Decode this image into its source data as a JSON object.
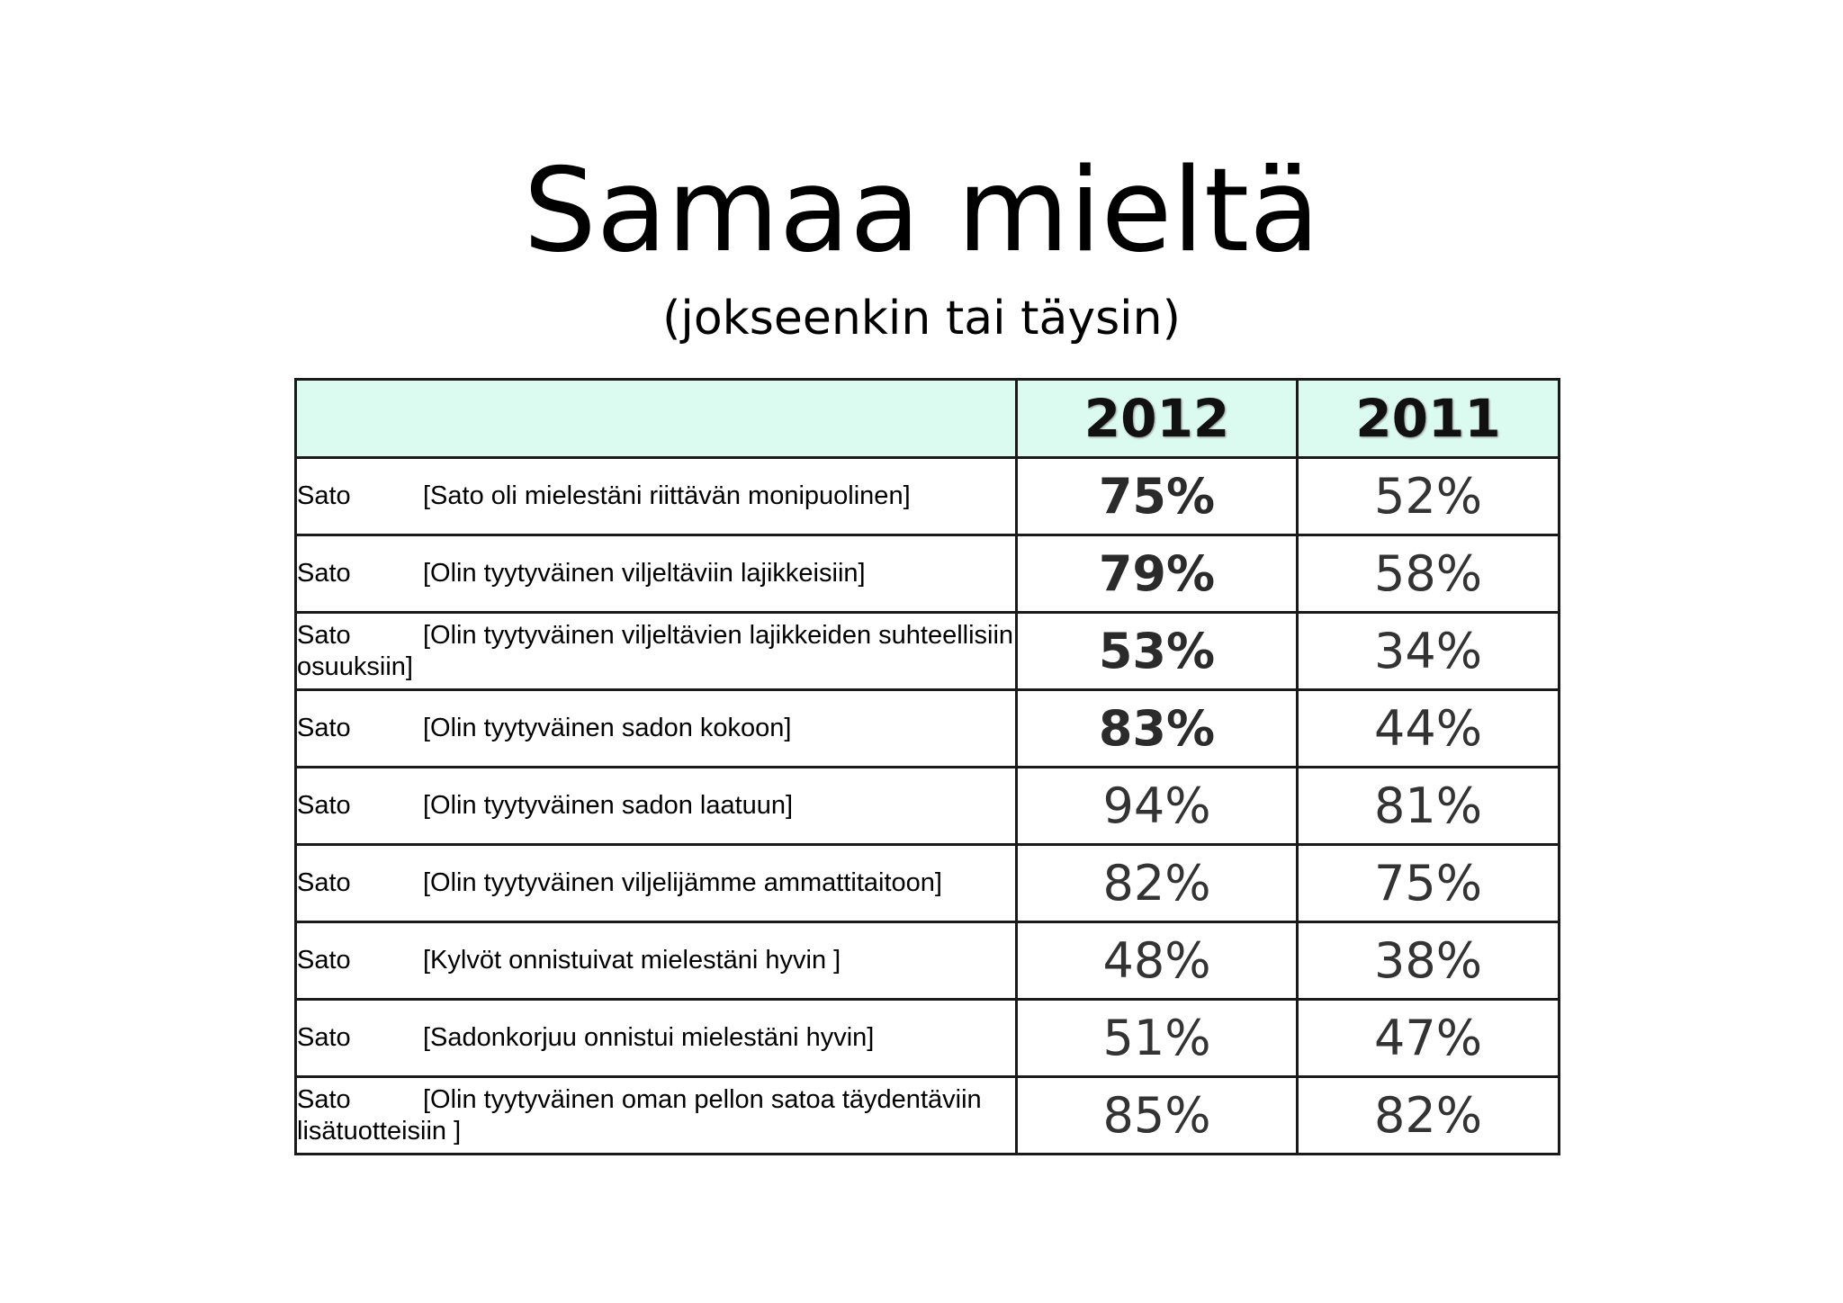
{
  "slide": {
    "title": "Samaa mieltä",
    "subtitle": "(jokseenkin tai täysin)"
  },
  "table": {
    "headers": [
      "",
      "2012",
      "2011"
    ],
    "rows": [
      {
        "prefix": "Sato",
        "text": "[Sato oli mielestäni riittävän monipuolinen]",
        "v2012": "75%",
        "v2011": "52%",
        "bold2012": true
      },
      {
        "prefix": "Sato",
        "text": "[Olin tyytyväinen viljeltäviin lajikkeisiin]",
        "v2012": "79%",
        "v2011": "58%",
        "bold2012": true
      },
      {
        "prefix": "Sato",
        "text": "[Olin tyytyväinen viljeltävien lajikkeiden suhteellisiin osuuksiin]",
        "v2012": "53%",
        "v2011": "34%",
        "bold2012": true
      },
      {
        "prefix": "Sato",
        "text": "[Olin tyytyväinen sadon kokoon]",
        "v2012": "83%",
        "v2011": "44%",
        "bold2012": true
      },
      {
        "prefix": "Sato",
        "text": "[Olin tyytyväinen sadon laatuun]",
        "v2012": "94%",
        "v2011": "81%",
        "bold2012": false
      },
      {
        "prefix": "Sato",
        "text": "[Olin tyytyväinen viljelijämme ammattitaitoon]",
        "v2012": "82%",
        "v2011": "75%",
        "bold2012": false
      },
      {
        "prefix": "Sato",
        "text": "[Kylvöt onnistuivat mielestäni hyvin ]",
        "v2012": "48%",
        "v2011": "38%",
        "bold2012": false
      },
      {
        "prefix": "Sato",
        "text": "[Sadonkorjuu onnistui mielestäni hyvin]",
        "v2012": "51%",
        "v2011": "47%",
        "bold2012": false
      },
      {
        "prefix": "Sato",
        "text": "[Olin tyytyväinen oman pellon satoa täydentäviin lisätuotteisiin ]",
        "v2012": "85%",
        "v2011": "82%",
        "bold2012": false
      }
    ]
  }
}
